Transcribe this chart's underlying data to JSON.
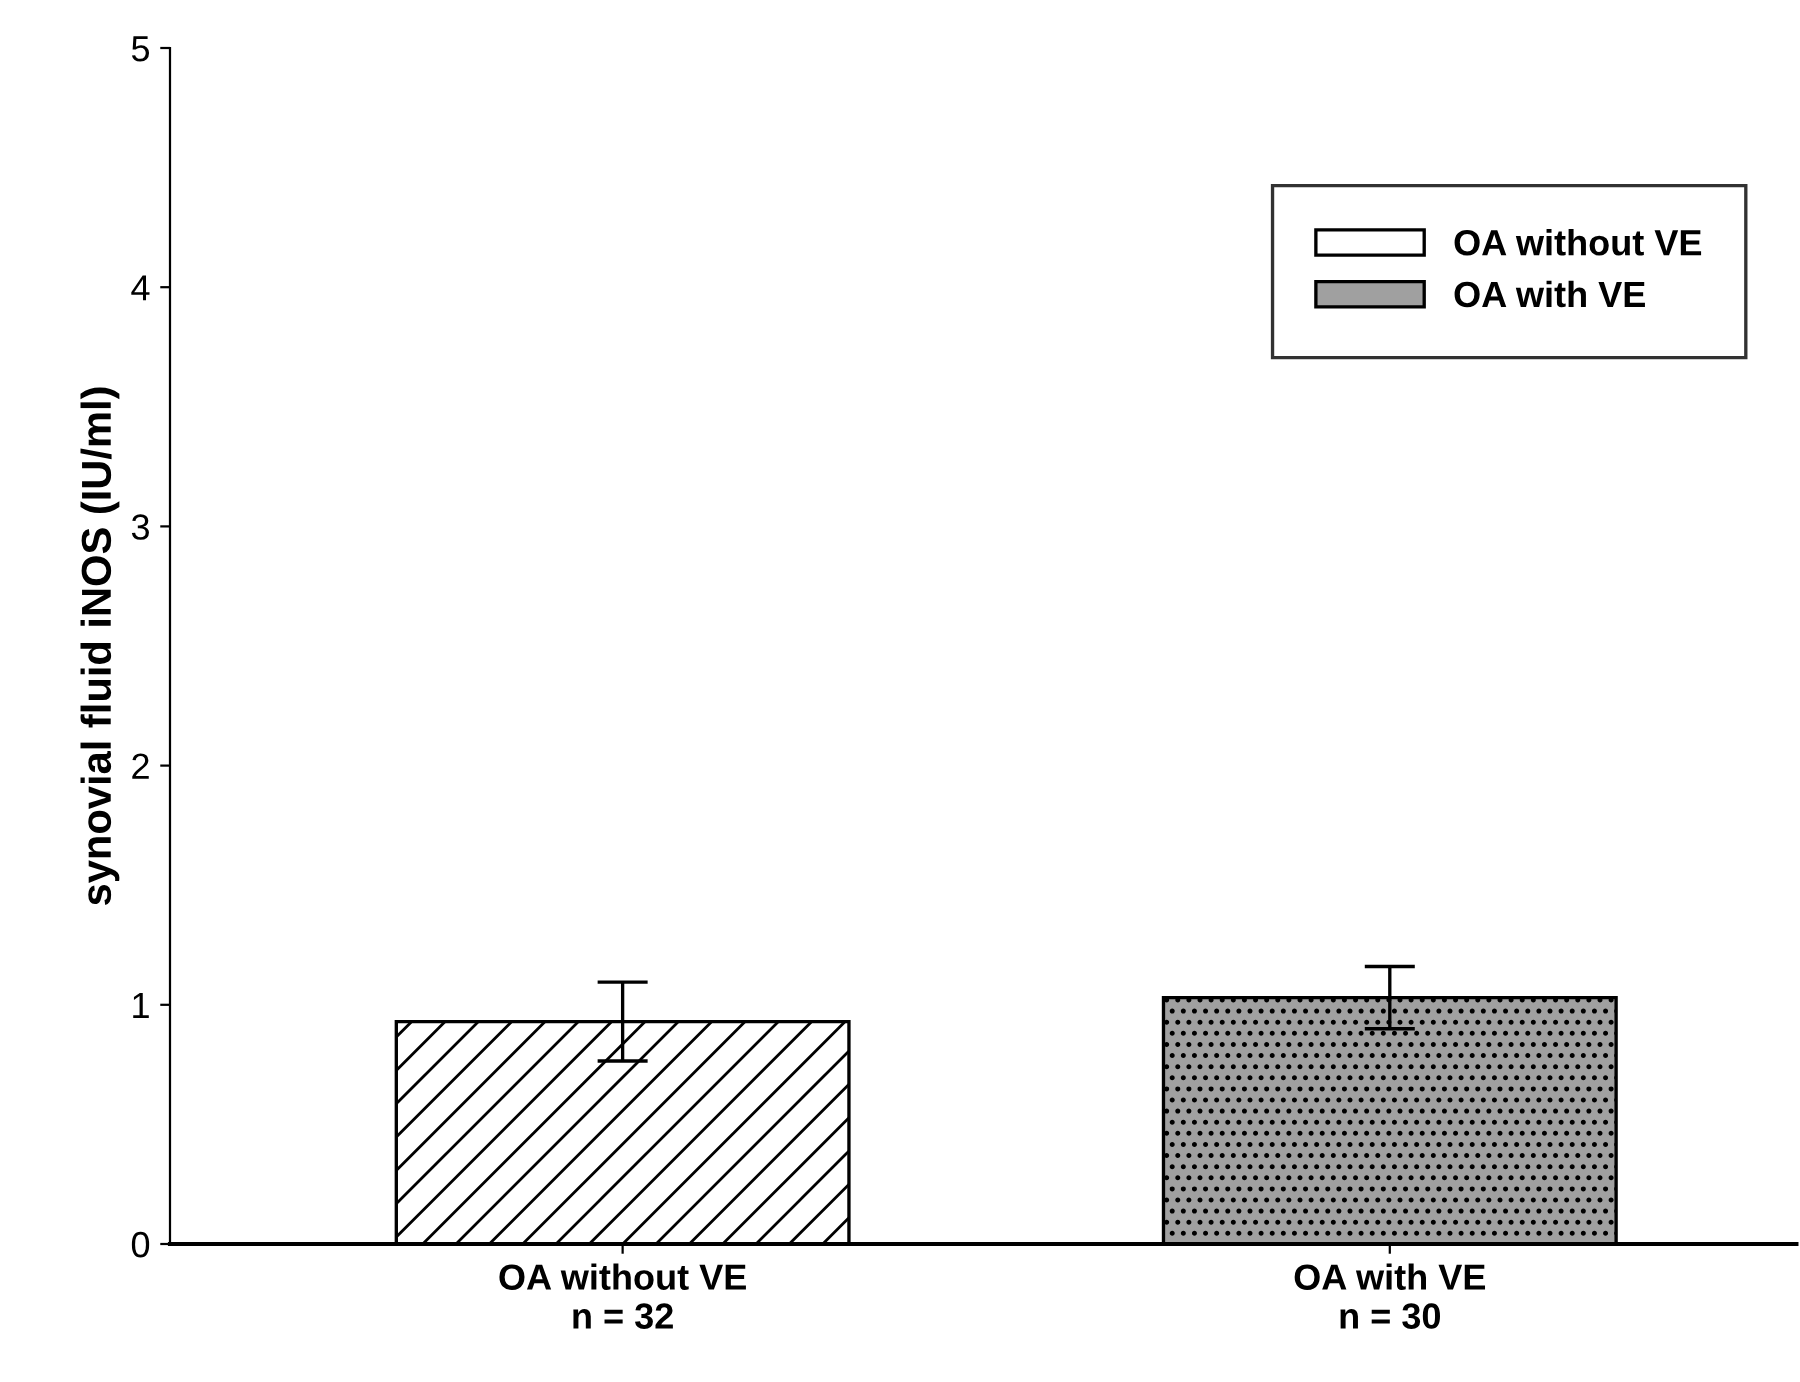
{
  "chart_data": {
    "type": "bar",
    "ylabel": "synovial fluid iNOS (IU/ml)",
    "categories": [
      "OA without VE\nn = 32",
      "OA with VE\nn = 30"
    ],
    "series": [
      {
        "name": "OA without VE",
        "color": "#ffffff",
        "values": [
          0.93,
          null
        ],
        "errors": [
          0.165,
          null
        ]
      },
      {
        "name": "OA with VE",
        "color": "#a0a0a0",
        "values": [
          null,
          1.03
        ],
        "errors": [
          null,
          0.13
        ]
      }
    ],
    "ylim": [
      0,
      5
    ],
    "yticks": [
      0,
      1,
      2,
      3,
      4,
      5
    ],
    "grid": false,
    "legend": "top right"
  }
}
